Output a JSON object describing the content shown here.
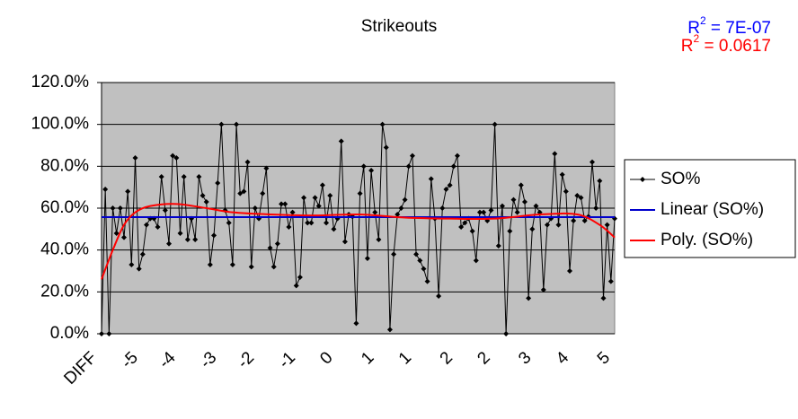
{
  "chart_data": {
    "type": "line",
    "title": "Strikeouts",
    "annotations": [
      {
        "base": "R",
        "sup": "2",
        "rest": " = 7E-07",
        "color": "#0000ff"
      },
      {
        "base": "R",
        "sup": "2",
        "rest": " = 0.0617",
        "color": "#ff0000"
      }
    ],
    "categories": [
      "DIFF",
      null,
      null,
      null,
      null,
      null,
      null,
      null,
      null,
      null,
      null,
      "-5",
      null,
      null,
      null,
      null,
      null,
      null,
      null,
      null,
      null,
      "-4",
      null,
      null,
      null,
      null,
      null,
      null,
      null,
      null,
      null,
      null,
      "-3",
      null,
      null,
      null,
      null,
      null,
      null,
      null,
      null,
      null,
      "-2",
      null,
      null,
      null,
      null,
      null,
      null,
      null,
      null,
      null,
      null,
      "-1",
      null,
      null,
      null,
      null,
      null,
      null,
      null,
      null,
      null,
      "0",
      null,
      null,
      null,
      null,
      null,
      null,
      null,
      null,
      null,
      null,
      "1",
      null,
      null,
      null,
      null,
      null,
      null,
      null,
      null,
      null,
      "1",
      null,
      null,
      null,
      null,
      null,
      null,
      null,
      null,
      null,
      null,
      "2",
      null,
      null,
      null,
      null,
      null,
      null,
      null,
      null,
      null,
      "2",
      null,
      null,
      null,
      null,
      null,
      null,
      null,
      null,
      null,
      null,
      "3",
      null,
      null,
      null,
      null,
      null,
      null,
      null,
      null,
      null,
      "4",
      null,
      null,
      null,
      null,
      null,
      null,
      null,
      null,
      null,
      null,
      "5"
    ],
    "series": [
      {
        "name": "SO%",
        "color": "#000000",
        "values": [
          0,
          69,
          0,
          60,
          48,
          60,
          46,
          68,
          33,
          84,
          31,
          38,
          52,
          55,
          55,
          51,
          75,
          59,
          43,
          85,
          84,
          48,
          75,
          45,
          55,
          45,
          75,
          66,
          63,
          33,
          47,
          72,
          100,
          59,
          53,
          33,
          100,
          67,
          68,
          82,
          32,
          60,
          55,
          67,
          79,
          41,
          32,
          43,
          62,
          62,
          51,
          58,
          23,
          27,
          65,
          53,
          53,
          65,
          61,
          71,
          53,
          66,
          50,
          55,
          92,
          44,
          57,
          56,
          5,
          67,
          80,
          36,
          78,
          58,
          45,
          100,
          89,
          2,
          38,
          57,
          60,
          64,
          80,
          85,
          38,
          35,
          31,
          25,
          74,
          55,
          18,
          60,
          69,
          71,
          80,
          85,
          51,
          53,
          55,
          49,
          35,
          58,
          58,
          54,
          59,
          100,
          42,
          61,
          0,
          49,
          64,
          58,
          71,
          63,
          17,
          50,
          61,
          58,
          21,
          52,
          55,
          86,
          52,
          76,
          68,
          30,
          54,
          66,
          65,
          54,
          56,
          82,
          60,
          73,
          17,
          52,
          25,
          55
        ]
      }
    ],
    "trendlines": [
      {
        "name": "Linear (SO%)",
        "color": "#0000cc",
        "x": [
          0,
          137
        ],
        "values": [
          55.7,
          55.7
        ]
      },
      {
        "name": "Poly. (SO%)",
        "color": "#ff0000",
        "x": [
          0,
          3,
          6,
          9,
          13,
          20,
          28,
          35,
          45,
          57,
          69,
          81,
          93,
          105,
          117,
          127,
          133,
          137
        ],
        "values": [
          26,
          40,
          52,
          58,
          61,
          62,
          60,
          58,
          57,
          56.5,
          57,
          55.5,
          55,
          55,
          57,
          57,
          52,
          46
        ]
      }
    ],
    "ylim": [
      0,
      120
    ],
    "yticks": [
      {
        "value": 0,
        "label": "0.0%"
      },
      {
        "value": 20,
        "label": "20.0%"
      },
      {
        "value": 40,
        "label": "40.0%"
      },
      {
        "value": 60,
        "label": "60.0%"
      },
      {
        "value": 80,
        "label": "80.0%"
      },
      {
        "value": 100,
        "label": "100.0%"
      },
      {
        "value": 120,
        "label": "120.0%"
      }
    ],
    "grid": true,
    "legend": "right"
  }
}
